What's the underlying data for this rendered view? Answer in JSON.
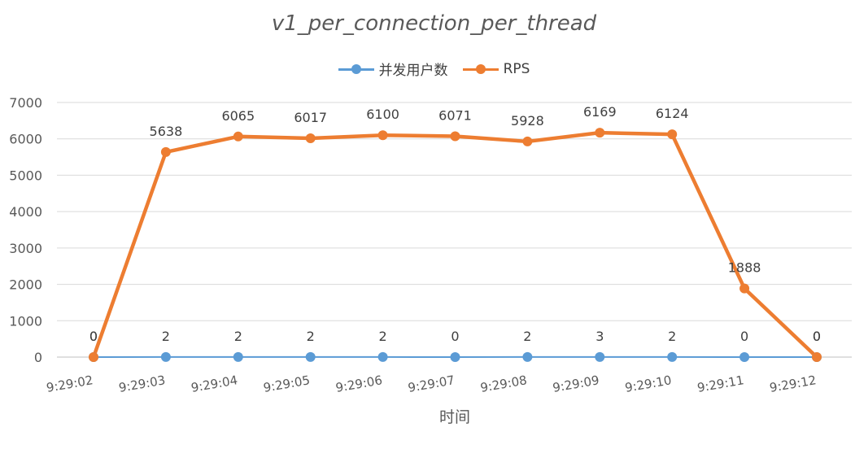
{
  "chart_data": {
    "type": "line",
    "title": "v1_per_connection_per_thread",
    "xlabel": "时间",
    "ylabel": "",
    "ylim": [
      0,
      7000
    ],
    "yticks": [
      0,
      1000,
      2000,
      3000,
      4000,
      5000,
      6000,
      7000
    ],
    "grid": true,
    "legend_position": "top",
    "categories": [
      "9:29:02",
      "9:29:03",
      "9:29:04",
      "9:29:05",
      "9:29:06",
      "9:29:07",
      "9:29:08",
      "9:29:09",
      "9:29:10",
      "9:29:11",
      "9:29:12"
    ],
    "series": [
      {
        "name": "并发用户数",
        "color": "#5b9bd5",
        "values": [
          0,
          2,
          2,
          2,
          2,
          0,
          2,
          3,
          2,
          0,
          0
        ]
      },
      {
        "name": "RPS",
        "color": "#ed7d31",
        "values": [
          0,
          5638,
          6065,
          6017,
          6100,
          6071,
          5928,
          6169,
          6124,
          1888,
          0
        ]
      }
    ]
  }
}
